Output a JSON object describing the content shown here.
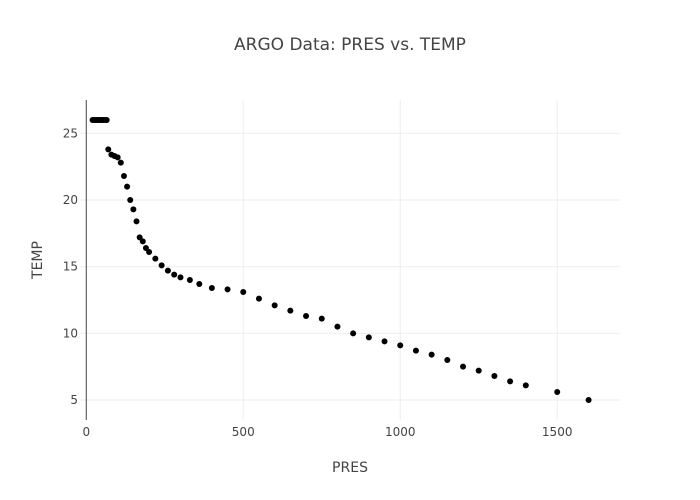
{
  "chart_data": {
    "type": "scatter",
    "title": "ARGO Data: PRES vs. TEMP",
    "xlabel": "PRES",
    "ylabel": "TEMP",
    "xlim": [
      -20,
      1700
    ],
    "ylim": [
      3.5,
      27.5
    ],
    "xticks": [
      0,
      500,
      1000,
      1500
    ],
    "yticks": [
      5,
      10,
      15,
      20,
      25
    ],
    "grid": true,
    "marker_color": "#000000",
    "series": [
      {
        "name": "TEMP",
        "x": [
          20,
          25,
          30,
          35,
          40,
          45,
          50,
          55,
          60,
          65,
          70,
          80,
          90,
          100,
          110,
          120,
          130,
          140,
          150,
          160,
          170,
          180,
          190,
          200,
          220,
          240,
          260,
          280,
          300,
          330,
          360,
          400,
          450,
          500,
          550,
          600,
          650,
          700,
          750,
          800,
          850,
          900,
          950,
          1000,
          1050,
          1100,
          1150,
          1200,
          1250,
          1300,
          1350,
          1400,
          1500,
          1600
        ],
        "y": [
          26.0,
          26.0,
          26.0,
          26.0,
          26.0,
          26.0,
          26.0,
          26.0,
          26.0,
          26.0,
          23.8,
          23.4,
          23.3,
          23.2,
          22.8,
          21.8,
          21.0,
          20.0,
          19.3,
          18.4,
          17.2,
          16.9,
          16.4,
          16.1,
          15.6,
          15.1,
          14.7,
          14.4,
          14.2,
          14.0,
          13.7,
          13.4,
          13.3,
          13.1,
          12.6,
          12.1,
          11.7,
          11.3,
          11.1,
          10.5,
          10.0,
          9.7,
          9.4,
          9.1,
          8.7,
          8.4,
          8.0,
          7.5,
          7.2,
          6.8,
          6.4,
          6.1,
          5.6,
          5.0
        ]
      }
    ]
  }
}
